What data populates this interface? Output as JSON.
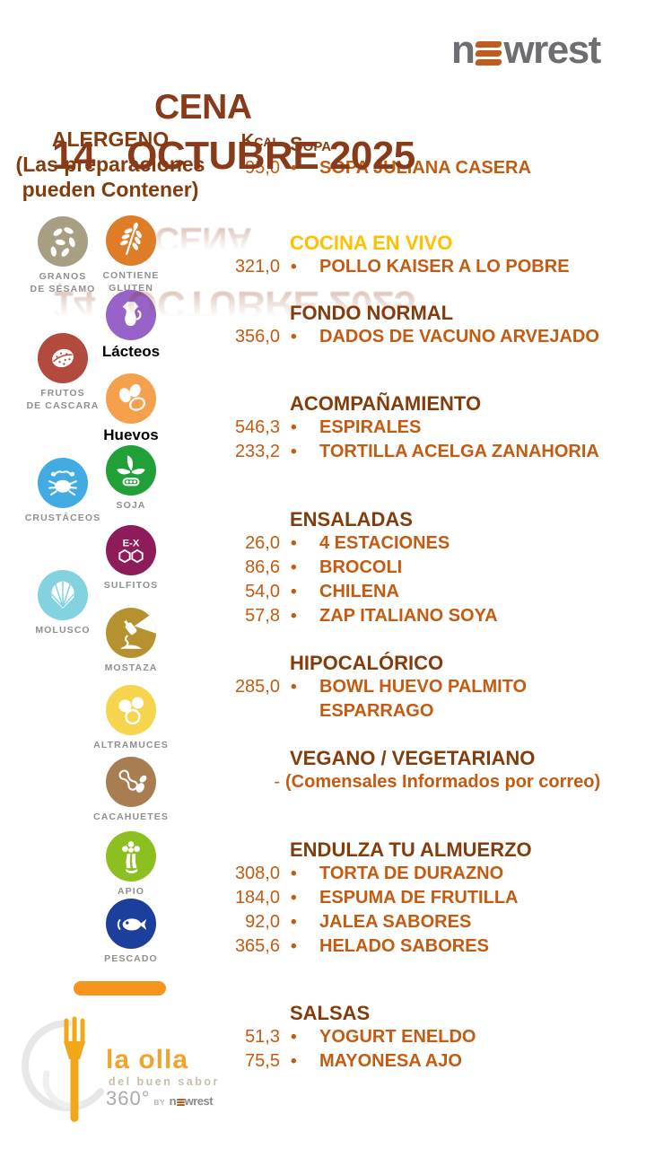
{
  "header": {
    "title": "CENA",
    "date_line": "14   OCTUBRE 2025",
    "title_color": "#883A19",
    "logo_text": "newrest",
    "logo_gray": "#6D6E71",
    "logo_orange": "#BE5B1F"
  },
  "allergen_panel": {
    "heading_line1": "ALERGENO",
    "heading_line2": "(Las preparaciones",
    "heading_line3": "pueden Contener)",
    "allergens": [
      {
        "name": "sesame-seeds",
        "label": "GRANOS\nDE SÉSAMO",
        "color": "#A79E83"
      },
      {
        "name": "gluten-wheat",
        "label": "CONTIENE\nGLUTEN",
        "color": "#DE7C28"
      },
      {
        "name": "dairy-jug",
        "label": "Lácteos",
        "color": "#9763C8"
      },
      {
        "name": "tree-nut",
        "label": "FRUTOS\nDE CASCARA",
        "color": "#B34A3E"
      },
      {
        "name": "eggs",
        "label": "Huevos",
        "color": "#F5A04C"
      },
      {
        "name": "crustacean",
        "label": "CRUSTÁCEOS",
        "color": "#42ABE1"
      },
      {
        "name": "soy",
        "label": "SOJA",
        "color": "#22A038"
      },
      {
        "name": "sulfites",
        "label": "SULFITOS",
        "color": "#8E1C5B",
        "badge": "E-X"
      },
      {
        "name": "mollusc-shell",
        "label": "MOLUSCO",
        "color": "#82D3DF"
      },
      {
        "name": "mustard",
        "label": "MOSTAZA",
        "color": "#B5922F"
      },
      {
        "name": "lupins",
        "label": "ALTRAMUCES",
        "color": "#F6D44D"
      },
      {
        "name": "peanuts",
        "label": "CACAHUETES",
        "color": "#A87D52"
      },
      {
        "name": "celery",
        "label": "APIO",
        "color": "#8CC021"
      },
      {
        "name": "fish",
        "label": "PESCADO",
        "color": "#1C3E9C"
      }
    ]
  },
  "menu": {
    "kcal_header": "Kcal",
    "bullet": "•",
    "header_color": "#843C0C",
    "item_color": "#C55A11",
    "sections": [
      {
        "label": "Sopa",
        "header_color": "#843C0C",
        "items": [
          {
            "kcal": "95,0",
            "name": "SOPA JULIANA CASERA"
          }
        ]
      },
      {
        "label": "COCINA EN VIVO",
        "header_color": "#FFC000",
        "items": [
          {
            "kcal": "321,0",
            "name": "POLLO KAISER A LO POBRE"
          }
        ]
      },
      {
        "label": "FONDO NORMAL",
        "header_color": "#843C0C",
        "items": [
          {
            "kcal": "356,0",
            "name": "DADOS DE VACUNO  ARVEJADO"
          }
        ]
      },
      {
        "label": "ACOMPAÑAMIENTO",
        "header_color": "#843C0C",
        "items": [
          {
            "kcal": "546,3",
            "name": "ESPIRALES"
          },
          {
            "kcal": "233,2",
            "name": "TORTILLA ACELGA ZANAHORIA"
          }
        ]
      },
      {
        "label": "ENSALADAS",
        "header_color": "#843C0C",
        "items": [
          {
            "kcal": "26,0",
            "name": "4 ESTACIONES"
          },
          {
            "kcal": "86,6",
            "name": "BROCOLI"
          },
          {
            "kcal": "54,0",
            "name": "CHILENA"
          },
          {
            "kcal": "57,8",
            "name": "ZAP ITALIANO SOYA"
          }
        ]
      },
      {
        "label": "HIPOCALÓRICO",
        "header_color": "#843C0C",
        "items": [
          {
            "kcal": "285,0",
            "name": "BOWL  HUEVO PALMITO\nESPARRAGO"
          }
        ]
      },
      {
        "label": "VEGANO / VEGETARIANO",
        "header_color": "#843C0C",
        "items": [
          {
            "kcal": "-",
            "name": "(Comensales Informados por correo)",
            "bullet": false
          }
        ]
      },
      {
        "label": "ENDULZA TU ALMUERZO",
        "header_color": "#843C0C",
        "items": [
          {
            "kcal": "308,0",
            "name": "TORTA DE DURAZNO"
          },
          {
            "kcal": "184,0",
            "name": "ESPUMA DE FRUTILLA"
          },
          {
            "kcal": "92,0",
            "name": "JALEA SABORES"
          },
          {
            "kcal": "365,6",
            "name": "HELADO SABORES"
          }
        ]
      },
      {
        "label": "SALSAS",
        "header_color": "#843C0C",
        "items": [
          {
            "kcal": "51,3",
            "name": "YOGURT  ENELDO"
          },
          {
            "kcal": "75,5",
            "name": "MAYONESA  AJO"
          }
        ]
      }
    ]
  },
  "footer": {
    "brand": "la olla",
    "tagline": "del buen sabor",
    "badge_360": "360°",
    "badge_by": "BY",
    "badge_brand": "newrest",
    "brand_color": "#F0A42E",
    "fork_color": "#F2A71B",
    "bar_color": "#F7941E"
  }
}
